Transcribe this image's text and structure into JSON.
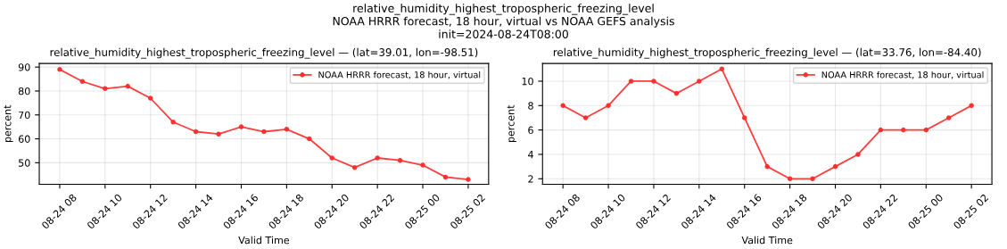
{
  "chart_data": [
    {
      "type": "line",
      "title": "relative_humidity_highest_tropospheric_freezing_level — (lat=39.01, lon=-98.51)",
      "xlabel": "Valid Time",
      "ylabel": "percent",
      "annotations": [
        "relative_humidity_highest_tropospheric_freezing_level",
        "NOAA HRRR forecast, 18 hour, virtual vs NOAA GEFS analysis",
        "init=2024-08-24T08:00"
      ],
      "x": [
        "2024-08-24T08:00",
        "2024-08-24T09:00",
        "2024-08-24T10:00",
        "2024-08-24T11:00",
        "2024-08-24T12:00",
        "2024-08-24T13:00",
        "2024-08-24T14:00",
        "2024-08-24T15:00",
        "2024-08-24T16:00",
        "2024-08-24T17:00",
        "2024-08-24T18:00",
        "2024-08-24T19:00",
        "2024-08-24T20:00",
        "2024-08-24T21:00",
        "2024-08-24T22:00",
        "2024-08-24T23:00",
        "2024-08-25T00:00",
        "2024-08-25T01:00",
        "2024-08-25T02:00"
      ],
      "series": [
        {
          "name": "NOAA HRRR forecast, 18 hour, virtual",
          "color": "#ff2a2a",
          "values": [
            89,
            84,
            81,
            82,
            77,
            67,
            63,
            62,
            65,
            63,
            64,
            60,
            52,
            48,
            52,
            51,
            49,
            44,
            43
          ]
        }
      ],
      "xlim": [
        "2024-08-24T07:06",
        "2024-08-25T02:54"
      ],
      "xticks": [
        {
          "value": "2024-08-24T08:00",
          "label": "08-24 08"
        },
        {
          "value": "2024-08-24T10:00",
          "label": "08-24 10"
        },
        {
          "value": "2024-08-24T12:00",
          "label": "08-24 12"
        },
        {
          "value": "2024-08-24T14:00",
          "label": "08-24 14"
        },
        {
          "value": "2024-08-24T16:00",
          "label": "08-24 16"
        },
        {
          "value": "2024-08-24T18:00",
          "label": "08-24 18"
        },
        {
          "value": "2024-08-24T20:00",
          "label": "08-24 20"
        },
        {
          "value": "2024-08-24T22:00",
          "label": "08-24 22"
        },
        {
          "value": "2024-08-25T00:00",
          "label": "08-25 00"
        },
        {
          "value": "2024-08-25T02:00",
          "label": "08-25 02"
        }
      ],
      "ylim": [
        41,
        91.5
      ],
      "yticks": [
        50,
        60,
        70,
        80,
        90
      ],
      "grid": true,
      "legend": "top right",
      "marker": "circle",
      "line_style": "solid"
    },
    {
      "type": "line",
      "title": "relative_humidity_highest_tropospheric_freezing_level — (lat=33.76, lon=-84.40)",
      "xlabel": "Valid Time",
      "ylabel": "percent",
      "x": [
        "2024-08-24T08:00",
        "2024-08-24T09:00",
        "2024-08-24T10:00",
        "2024-08-24T11:00",
        "2024-08-24T12:00",
        "2024-08-24T13:00",
        "2024-08-24T14:00",
        "2024-08-24T15:00",
        "2024-08-24T16:00",
        "2024-08-24T17:00",
        "2024-08-24T18:00",
        "2024-08-24T19:00",
        "2024-08-24T20:00",
        "2024-08-24T21:00",
        "2024-08-24T22:00",
        "2024-08-24T23:00",
        "2024-08-25T00:00",
        "2024-08-25T01:00",
        "2024-08-25T02:00"
      ],
      "series": [
        {
          "name": "NOAA HRRR forecast, 18 hour, virtual",
          "color": "#ff2a2a",
          "values": [
            8,
            7,
            8,
            10,
            10,
            9,
            10,
            11,
            7,
            3,
            2,
            2,
            3,
            4,
            6,
            6,
            6,
            7,
            8
          ]
        }
      ],
      "xlim": [
        "2024-08-24T07:06",
        "2024-08-25T02:54"
      ],
      "xticks": [
        {
          "value": "2024-08-24T08:00",
          "label": "08-24 08"
        },
        {
          "value": "2024-08-24T10:00",
          "label": "08-24 10"
        },
        {
          "value": "2024-08-24T12:00",
          "label": "08-24 12"
        },
        {
          "value": "2024-08-24T14:00",
          "label": "08-24 14"
        },
        {
          "value": "2024-08-24T16:00",
          "label": "08-24 16"
        },
        {
          "value": "2024-08-24T18:00",
          "label": "08-24 18"
        },
        {
          "value": "2024-08-24T20:00",
          "label": "08-24 20"
        },
        {
          "value": "2024-08-24T22:00",
          "label": "08-24 22"
        },
        {
          "value": "2024-08-25T00:00",
          "label": "08-25 00"
        },
        {
          "value": "2024-08-25T02:00",
          "label": "08-25 02"
        }
      ],
      "ylim": [
        1.55,
        11.45
      ],
      "yticks": [
        2,
        4,
        6,
        8,
        10
      ],
      "grid": true,
      "legend": "top right",
      "marker": "circle",
      "line_style": "solid"
    }
  ]
}
